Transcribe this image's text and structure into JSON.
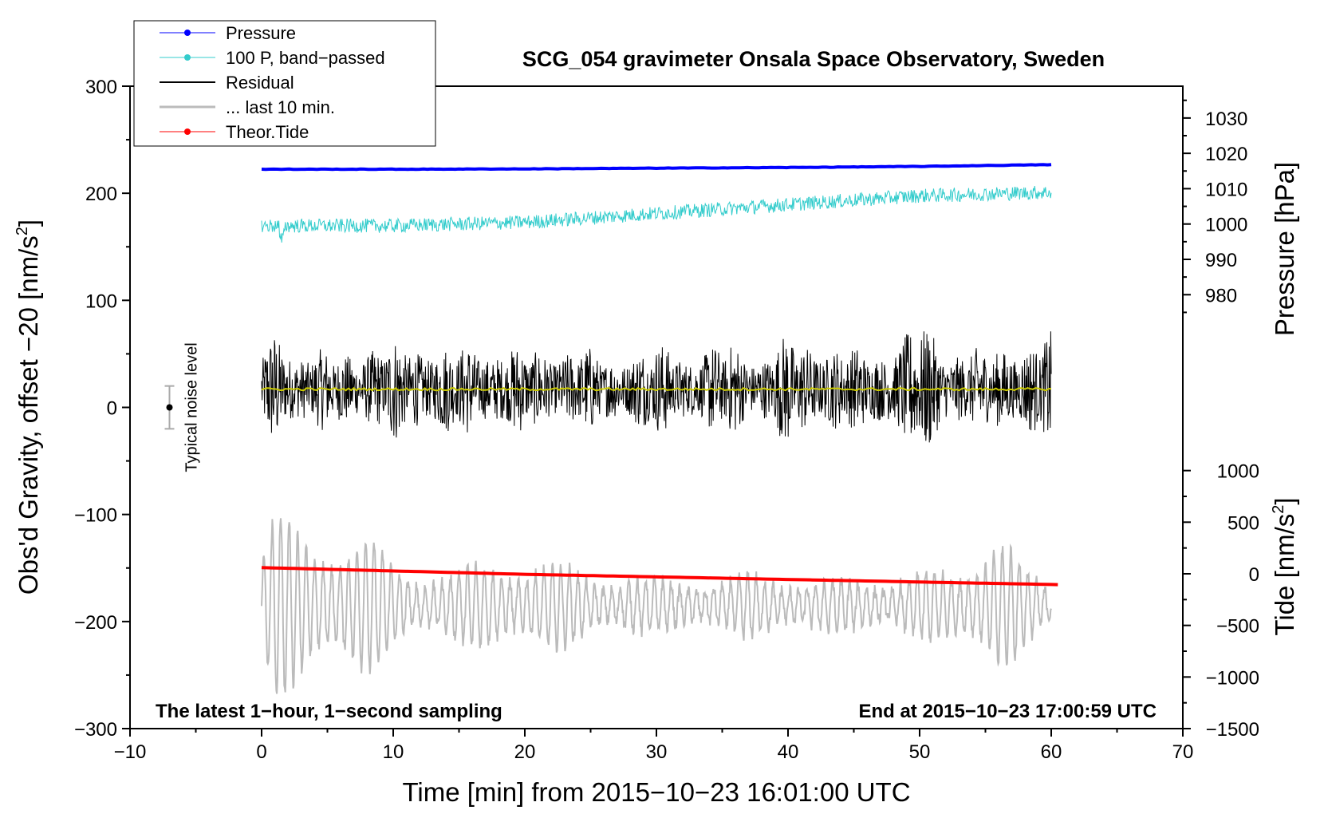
{
  "chart_data": {
    "type": "line",
    "title": "SCG_054 gravimeter Onsala Space Observatory, Sweden",
    "xlabel": "Time [min] from 2015−10−23 16:01:00 UTC",
    "ylabel": "Obs'd Gravity, offset −20 [nm/s",
    "ylabel_sup": "2",
    "ylabel_end": "]",
    "y2label": "Pressure [hPa]",
    "y3label": "Tide [nm/s",
    "y3label_sup": "2",
    "y3label_end": "]",
    "xlim": [
      -10,
      70
    ],
    "ylim": [
      -300,
      300
    ],
    "x_ticks": [
      -10,
      0,
      10,
      20,
      30,
      40,
      50,
      60,
      70
    ],
    "x_tick_labels": [
      "−10",
      "0",
      "10",
      "20",
      "30",
      "40",
      "50",
      "60",
      "70"
    ],
    "y_ticks": [
      -300,
      -200,
      -100,
      0,
      100,
      200,
      300
    ],
    "y_tick_labels": [
      "−300",
      "−200",
      "−100",
      "0",
      "100",
      "200",
      "300"
    ],
    "pressure_axis": {
      "ticks": [
        980,
        990,
        1000,
        1010,
        1020,
        1030
      ],
      "tick_labels": [
        "980",
        "990",
        "1000",
        "1010",
        "1020",
        "1030"
      ],
      "range": [
        955,
        1039
      ]
    },
    "tide_axis": {
      "ticks": [
        -1500,
        -1000,
        -500,
        0,
        500,
        1000
      ],
      "tick_labels": [
        "−1500",
        "−1000",
        "−500",
        "0",
        "500",
        "1000"
      ],
      "range": [
        -1500,
        1500
      ]
    },
    "annotations": {
      "left_note": "The latest 1−hour, 1−second sampling",
      "right_note": "End at 2015−10−23 17:00:59 UTC",
      "noise_label": "Typical noise level",
      "noise_bar": {
        "x": -7,
        "center": 0,
        "half_range": 20
      }
    },
    "legend": [
      {
        "name": "Pressure",
        "color": "#0000ff",
        "marker": true
      },
      {
        "name": "100 P, band−passed",
        "color": "#33cccc",
        "marker": true
      },
      {
        "name": "Residual",
        "color": "#000000",
        "marker": false
      },
      {
        "name": "... last 10 min.",
        "color": "#bbbbbb",
        "marker": false
      },
      {
        "name": "Theor.Tide",
        "color": "#ff0000",
        "marker": true
      }
    ],
    "series": [
      {
        "name": "Pressure",
        "axis": "pressure",
        "color": "#0000ff",
        "x": [
          0,
          10,
          20,
          30,
          40,
          50,
          60
        ],
        "values": [
          1015.5,
          1015.5,
          1015.6,
          1015.8,
          1016.0,
          1016.3,
          1016.8
        ]
      },
      {
        "name": "100 P, band−passed",
        "axis": "pressure",
        "color": "#33cccc",
        "x": [
          0,
          10,
          20,
          30,
          40,
          50,
          60
        ],
        "values": [
          999.5,
          999.5,
          1000.5,
          1003.0,
          1005.5,
          1008.0,
          1009.0
        ],
        "noise_amplitude": 2.0
      },
      {
        "name": "Residual",
        "axis": "gravity",
        "color": "#000000",
        "x_range": [
          0,
          60
        ],
        "center": 17,
        "envelope_x": [
          0,
          1,
          3,
          6,
          10,
          14,
          18,
          22,
          24,
          26,
          30,
          33,
          36,
          38,
          40,
          43,
          46,
          49,
          50,
          52,
          55,
          58,
          60
        ],
        "envelope_amplitude": [
          45,
          60,
          40,
          38,
          50,
          45,
          45,
          40,
          45,
          35,
          45,
          40,
          48,
          35,
          55,
          45,
          40,
          55,
          70,
          45,
          40,
          50,
          55
        ]
      },
      {
        "name": "... last 10 min.",
        "axis": "gravity",
        "color": "#bbbbbb",
        "x_range": [
          0,
          60
        ],
        "center": -185,
        "envelope_x": [
          0,
          1,
          3,
          8,
          10,
          14,
          18,
          22,
          26,
          30,
          34,
          38,
          42,
          45,
          48,
          50,
          53,
          55,
          56,
          58,
          60
        ],
        "envelope_amplitude": [
          50,
          90,
          70,
          65,
          40,
          30,
          45,
          40,
          30,
          25,
          25,
          30,
          25,
          25,
          30,
          30,
          35,
          65,
          70,
          35,
          15
        ]
      },
      {
        "name": "Residual smoothed",
        "axis": "gravity",
        "color": "#cccc00",
        "x": [
          0,
          60
        ],
        "values": [
          17,
          17
        ]
      },
      {
        "name": "Theor.Tide",
        "axis": "tide",
        "color": "#ff0000",
        "x": [
          0,
          20,
          40,
          60.5
        ],
        "values": [
          60,
          -5,
          -55,
          -105
        ]
      }
    ]
  }
}
